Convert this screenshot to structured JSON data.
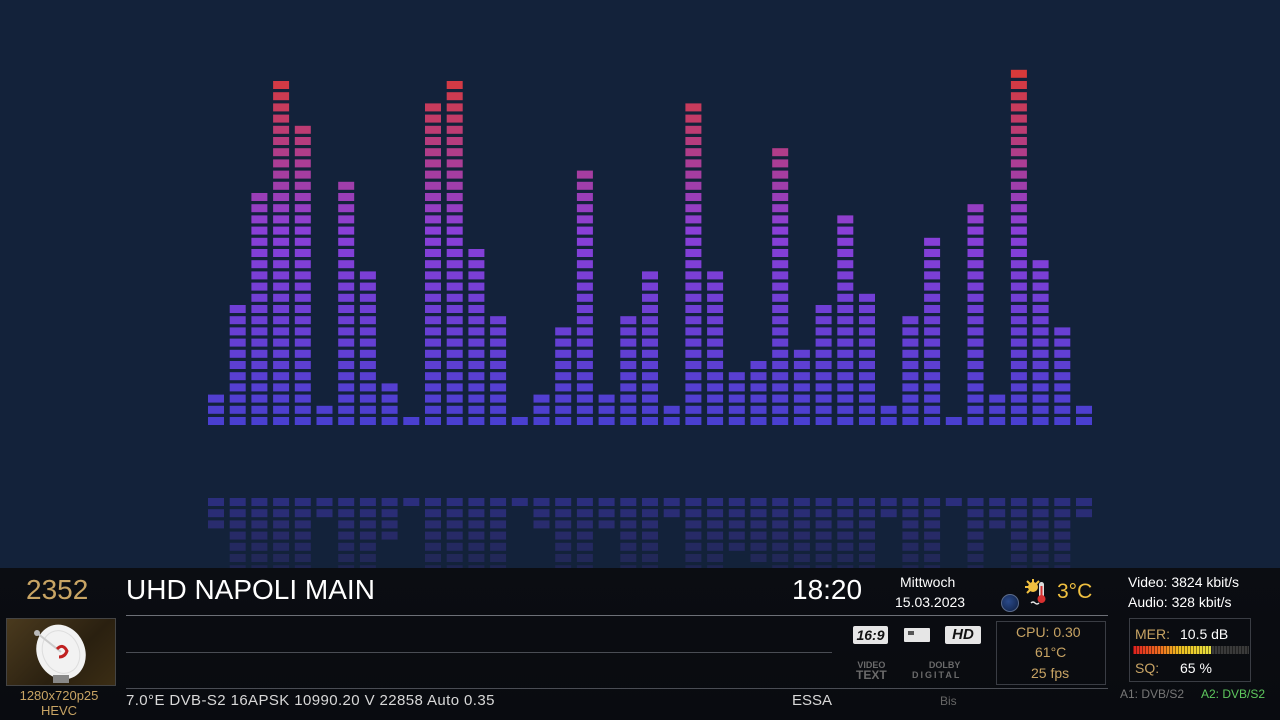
{
  "channel": {
    "number": "2352",
    "name": "UHD NAPOLI MAIN",
    "picon_icon": "satellite-dish-icon"
  },
  "clock": {
    "time": "18:20",
    "weekday": "Mittwoch",
    "date": "15.03.2023"
  },
  "weather": {
    "temperature": "3°C",
    "icon": "sun-thermometer-icon"
  },
  "bitrate": {
    "video": "Video: 3824 kbit/s",
    "audio": "Audio: 328 kbit/s"
  },
  "video_info": {
    "resolution": "1280x720p25",
    "codec": "HEVC"
  },
  "transponder": {
    "line": "7.0°E  DVB-S2  16APSK  10990.20  V  22858  Auto  0.35",
    "provider": "ESSA",
    "ca_system": "Bis"
  },
  "badges": {
    "aspect": "16:9",
    "hd": "HD",
    "videotext_1": "VIDEO",
    "videotext_2": "TEXT",
    "dolby_1": "DOLBY",
    "dolby_2": "DIGITAL"
  },
  "system": {
    "cpu": "CPU: 0.30",
    "temp": "61°C",
    "fps": "25 fps"
  },
  "signal": {
    "mer_label": "MER:",
    "mer_value": "10.5 dB",
    "mer_fill_fraction": 0.67,
    "sq_label": "SQ:",
    "sq_value": "65 %"
  },
  "tuners": {
    "a1": "A1: DVB/S2",
    "a2": "A2: DVB/S2"
  },
  "visualizer": {
    "segments": [
      3,
      11,
      21,
      31,
      27,
      2,
      22,
      14,
      4,
      1,
      29,
      31,
      16,
      10,
      1,
      3,
      9,
      23,
      3,
      10,
      14,
      2,
      29,
      14,
      5,
      6,
      25,
      7,
      11,
      19,
      12,
      2,
      10,
      17,
      1,
      20,
      3,
      32,
      15,
      9,
      2
    ]
  },
  "colors": {
    "background": "#13223a",
    "accent_gold": "#c8a464",
    "tuner_active": "#5ec85e",
    "bar_low": "#4a3fd0",
    "bar_high": "#d83a3a"
  }
}
